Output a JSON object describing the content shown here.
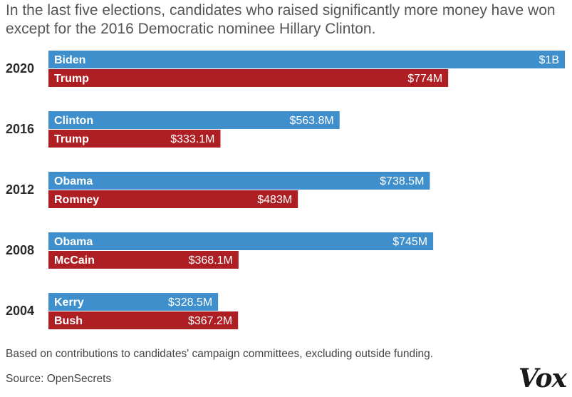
{
  "title": "In the last five elections, candidates who raised significantly more money have won except for the 2016 Democratic nominee Hillary Clinton.",
  "note": "Based on contributions to candidates' campaign committees, excluding outside funding.",
  "source": "Source: OpenSecrets",
  "logo": "Vox",
  "colors": {
    "democrat": "#3e8fcb",
    "republican": "#ae1f24"
  },
  "chart_data": {
    "type": "bar",
    "orientation": "horizontal",
    "unit": "USD millions",
    "xlim": [
      0,
      1000
    ],
    "groups": [
      {
        "year": "2020",
        "bars": [
          {
            "party": "democrat",
            "candidate": "Biden",
            "value": 1000,
            "label": "$1B"
          },
          {
            "party": "republican",
            "candidate": "Trump",
            "value": 774,
            "label": "$774M"
          }
        ]
      },
      {
        "year": "2016",
        "bars": [
          {
            "party": "democrat",
            "candidate": "Clinton",
            "value": 563.8,
            "label": "$563.8M"
          },
          {
            "party": "republican",
            "candidate": "Trump",
            "value": 333.1,
            "label": "$333.1M"
          }
        ]
      },
      {
        "year": "2012",
        "bars": [
          {
            "party": "democrat",
            "candidate": "Obama",
            "value": 738.5,
            "label": "$738.5M"
          },
          {
            "party": "republican",
            "candidate": "Romney",
            "value": 483,
            "label": "$483M"
          }
        ]
      },
      {
        "year": "2008",
        "bars": [
          {
            "party": "democrat",
            "candidate": "Obama",
            "value": 745,
            "label": "$745M"
          },
          {
            "party": "republican",
            "candidate": "McCain",
            "value": 368.1,
            "label": "$368.1M"
          }
        ]
      },
      {
        "year": "2004",
        "bars": [
          {
            "party": "democrat",
            "candidate": "Kerry",
            "value": 328.5,
            "label": "$328.5M"
          },
          {
            "party": "republican",
            "candidate": "Bush",
            "value": 367.2,
            "label": "$367.2M"
          }
        ]
      }
    ]
  }
}
